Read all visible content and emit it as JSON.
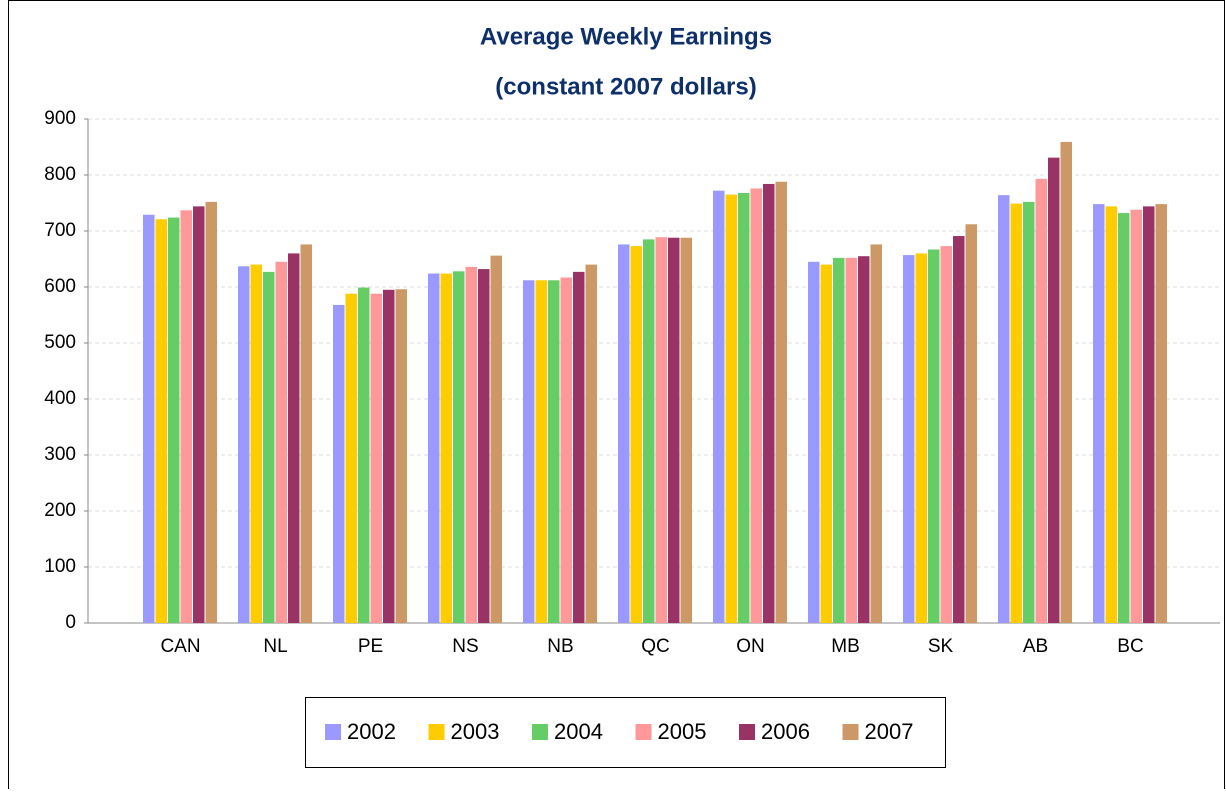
{
  "chart_data": {
    "type": "bar",
    "title": "Average Weekly Earnings",
    "subtitle": "(constant 2007 dollars)",
    "categories": [
      "CAN",
      "NL",
      "PE",
      "NS",
      "NB",
      "QC",
      "ON",
      "MB",
      "SK",
      "AB",
      "BC"
    ],
    "series": [
      {
        "name": "2002",
        "color": "#9999ff",
        "values": [
          729,
          637,
          568,
          624,
          612,
          676,
          772,
          645,
          657,
          764,
          748
        ]
      },
      {
        "name": "2003",
        "color": "#ffcc00",
        "values": [
          721,
          640,
          588,
          624,
          612,
          673,
          765,
          640,
          660,
          749,
          744
        ]
      },
      {
        "name": "2004",
        "color": "#66cc66",
        "values": [
          724,
          627,
          599,
          628,
          612,
          685,
          768,
          652,
          667,
          752,
          732
        ]
      },
      {
        "name": "2005",
        "color": "#ff9999",
        "values": [
          737,
          645,
          588,
          636,
          617,
          689,
          776,
          652,
          673,
          793,
          738
        ]
      },
      {
        "name": "2006",
        "color": "#993366",
        "values": [
          744,
          660,
          595,
          632,
          627,
          688,
          784,
          655,
          691,
          831,
          744
        ]
      },
      {
        "name": "2007",
        "color": "#cc9966",
        "values": [
          752,
          676,
          596,
          656,
          640,
          688,
          788,
          676,
          712,
          859,
          748
        ]
      }
    ],
    "ylim": [
      0,
      900
    ],
    "yticks": [
      0,
      100,
      200,
      300,
      400,
      500,
      600,
      700,
      800,
      900
    ],
    "grid": true,
    "legend": "bottom"
  }
}
